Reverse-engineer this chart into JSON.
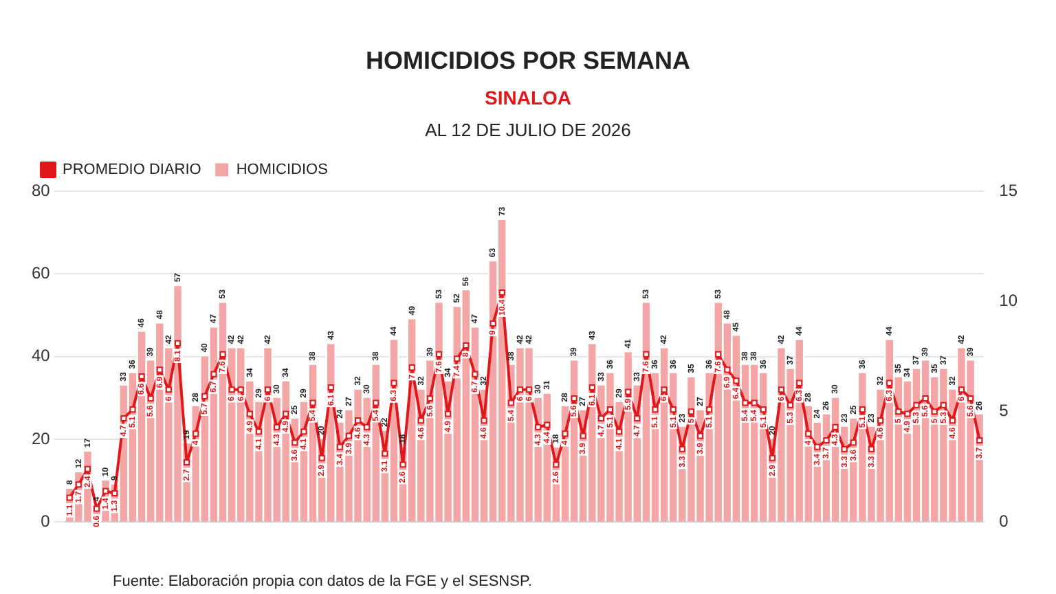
{
  "chart_data": {
    "type": "bar",
    "title": "HOMICIDIOS POR SEMANA",
    "subtitle": "SINALOA",
    "annotations": [
      "AL 12 DE JULIO DE 2026",
      "Fuente: Elaboración propia con datos de la FGE y el SESNSP."
    ],
    "categories": [
      null,
      null,
      null,
      null,
      null,
      null,
      null,
      null,
      null,
      null,
      null,
      null,
      null,
      null,
      null,
      null,
      null,
      null,
      null,
      null,
      null,
      null,
      null,
      null,
      null,
      null,
      null,
      null,
      null,
      null,
      null,
      null,
      null,
      null,
      null,
      null,
      null,
      null,
      null,
      null,
      null,
      null,
      null,
      null,
      null,
      null,
      null,
      null,
      null,
      null,
      null,
      null,
      null,
      null,
      null,
      null,
      null,
      null,
      null,
      null,
      null,
      null,
      null,
      null,
      null,
      null,
      null,
      null,
      null,
      null,
      null,
      null,
      null,
      null,
      null,
      null,
      null,
      null,
      null,
      null,
      null,
      null,
      null,
      null,
      null,
      null,
      null,
      null,
      null,
      null,
      null,
      null,
      null,
      null,
      null,
      null,
      null,
      null,
      null,
      null,
      null,
      null
    ],
    "series": [
      {
        "name": "PROMEDIO DIARIO",
        "type": "line",
        "axis": "y2",
        "color": "#e0181b",
        "values": [
          1.1,
          1.7,
          2.4,
          0.6,
          1.4,
          1.3,
          4.7,
          5.1,
          6.6,
          5.6,
          6.9,
          6.0,
          8.1,
          2.7,
          4.0,
          5.7,
          6.7,
          7.6,
          6.0,
          6.0,
          4.9,
          4.1,
          6.0,
          4.3,
          4.9,
          3.6,
          4.1,
          5.4,
          2.9,
          6.1,
          3.4,
          3.9,
          4.6,
          4.3,
          5.4,
          3.1,
          6.3,
          2.6,
          7.0,
          4.6,
          5.6,
          7.6,
          4.9,
          7.4,
          8.0,
          6.7,
          4.6,
          9.0,
          10.4,
          5.4,
          6.0,
          6.0,
          4.3,
          4.4,
          2.6,
          4.0,
          5.6,
          3.9,
          6.1,
          4.7,
          5.1,
          4.1,
          5.9,
          4.7,
          7.6,
          5.1,
          6.0,
          5.1,
          3.3,
          5.0,
          3.9,
          5.1,
          7.6,
          6.9,
          6.4,
          5.4,
          5.4,
          5.1,
          2.9,
          6.0,
          5.3,
          6.3,
          4.0,
          3.4,
          3.7,
          4.3,
          3.3,
          3.6,
          5.1,
          3.3,
          4.6,
          6.3,
          5.0,
          4.9,
          5.3,
          5.6,
          5.0,
          5.3,
          4.6,
          6.0,
          5.6,
          3.7
        ]
      },
      {
        "name": "HOMICIDIOS",
        "color": "#f4a6a6",
        "values": [
          8,
          12,
          17,
          4,
          10,
          9,
          33,
          36,
          46,
          39,
          48,
          42,
          57,
          19,
          28,
          40,
          47,
          53,
          42,
          42,
          34,
          29,
          42,
          30,
          34,
          25,
          29,
          38,
          20,
          43,
          24,
          27,
          32,
          30,
          38,
          22,
          44,
          18,
          49,
          32,
          39,
          53,
          34,
          52,
          56,
          47,
          32,
          63,
          73,
          38,
          42,
          42,
          30,
          31,
          18,
          28,
          39,
          27,
          43,
          33,
          36,
          29,
          41,
          33,
          53,
          36,
          42,
          36,
          23,
          35,
          27,
          36,
          53,
          48,
          45,
          38,
          38,
          36,
          20,
          42,
          37,
          44,
          28,
          24,
          26,
          30,
          23,
          25,
          36,
          23,
          32,
          44,
          35,
          34,
          37,
          39,
          35,
          37,
          32,
          42,
          39,
          26
        ]
      }
    ],
    "ylim": [
      0,
      80
    ],
    "yticks": [
      0,
      20,
      40,
      60,
      80
    ],
    "y2lim": [
      0,
      15
    ],
    "y2ticks": [
      0,
      5,
      10,
      15
    ],
    "grid": "y",
    "legend": "top left",
    "data_labels": true,
    "marker": "square"
  }
}
